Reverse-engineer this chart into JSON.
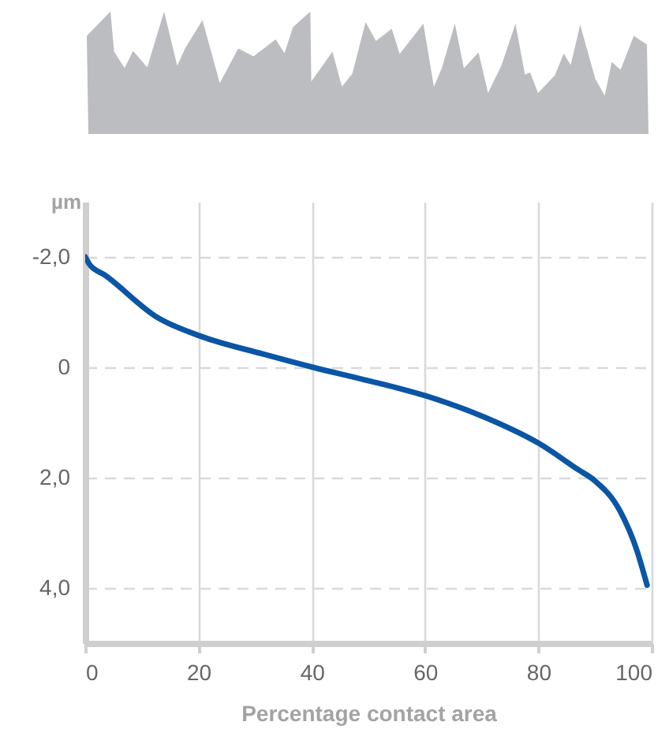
{
  "chart_data": {
    "type": "line",
    "xlabel": "Percentage contact area",
    "ylabel": "µm",
    "x": [
      0,
      0.8,
      3.5,
      12.8,
      20.2,
      31.4,
      40.2,
      49.9,
      60.2,
      70.4,
      80.1,
      87.1,
      89.9,
      94.5,
      97.3,
      99.2
    ],
    "series": [
      {
        "color": "#0a55a5",
        "values": [
          -2.0,
          -1.86,
          -1.67,
          -0.9,
          -0.57,
          -0.24,
          0,
          0.24,
          0.52,
          0.9,
          1.38,
          1.86,
          2.05,
          2.62,
          3.29,
          3.95
        ]
      }
    ],
    "xlim": [
      0,
      100
    ],
    "xticks": [
      0,
      20,
      40,
      60,
      80,
      100
    ],
    "ylim": [
      5,
      -3
    ],
    "yticks": [
      {
        "value": -2,
        "label": "-2,0"
      },
      0,
      {
        "value": 2,
        "label": "2,0"
      },
      {
        "value": 4,
        "label": "4,0"
      }
    ],
    "grid": true,
    "line_style": "solid",
    "marker": "none"
  }
}
